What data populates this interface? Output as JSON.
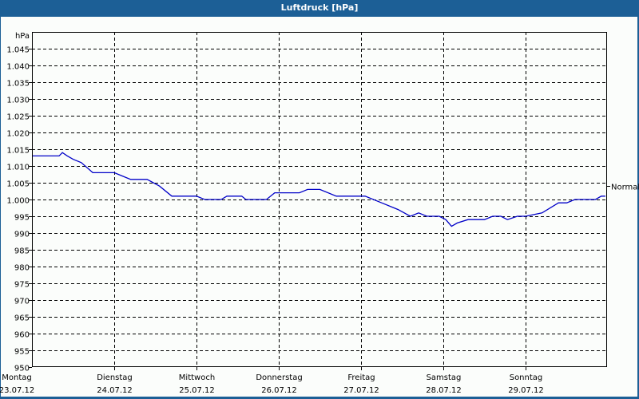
{
  "window": {
    "title": "Luftdruck [hPa]"
  },
  "chart_data": {
    "type": "line",
    "title": "Luftdruck [hPa]",
    "xlabel": "",
    "ylabel": "hPa",
    "ylim": [
      950,
      1045
    ],
    "y_ticks": [
      "950",
      "955",
      "960",
      "965",
      "970",
      "975",
      "980",
      "985",
      "990",
      "995",
      "1.000",
      "1.005",
      "1.010",
      "1.015",
      "1.020",
      "1.025",
      "1.030",
      "1.035",
      "1.040",
      "1.045"
    ],
    "x_ticks": [
      {
        "day": "Montag",
        "date": "23.07.12"
      },
      {
        "day": "Dienstag",
        "date": "24.07.12"
      },
      {
        "day": "Mittwoch",
        "date": "25.07.12"
      },
      {
        "day": "Donnerstag",
        "date": "26.07.12"
      },
      {
        "day": "Freitag",
        "date": "27.07.12"
      },
      {
        "day": "Samstag",
        "date": "28.07.12"
      },
      {
        "day": "Sonntag",
        "date": "29.07.12"
      }
    ],
    "reference_line": {
      "label": "Normal",
      "value": 1004
    },
    "grid": true,
    "series": [
      {
        "name": "Luftdruck",
        "color": "#0000c8",
        "x_days": [
          0.0,
          0.33,
          0.37,
          0.43,
          0.5,
          0.6,
          0.74,
          1.0,
          1.1,
          1.2,
          1.4,
          1.55,
          1.7,
          2.0,
          2.1,
          2.3,
          2.37,
          2.55,
          2.6,
          2.85,
          2.95,
          3.25,
          3.35,
          3.5,
          3.7,
          4.05,
          4.25,
          4.45,
          4.6,
          4.7,
          4.8,
          4.95,
          5.03,
          5.1,
          5.17,
          5.3,
          5.5,
          5.6,
          5.7,
          5.78,
          5.9,
          6.0,
          6.2,
          6.4,
          6.5,
          6.6,
          6.85,
          6.92,
          6.97
        ],
        "values": [
          1013,
          1013,
          1014,
          1013,
          1012,
          1011,
          1008,
          1008,
          1007,
          1006,
          1006,
          1004,
          1001,
          1001,
          1000,
          1000,
          1001,
          1001,
          1000,
          1000,
          1002,
          1002,
          1003,
          1003,
          1001,
          1001,
          999,
          997,
          995,
          996,
          995,
          995,
          994,
          992,
          993,
          994,
          994,
          995,
          995,
          994,
          995,
          995,
          996,
          999,
          999,
          1000,
          1000,
          1001,
          1001
        ]
      }
    ]
  }
}
